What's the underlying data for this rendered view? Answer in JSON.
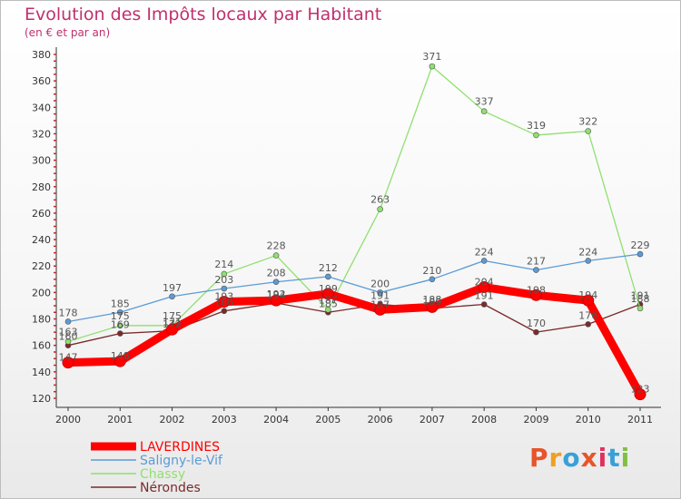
{
  "header": {
    "title": "Evolution des Impôts locaux par Habitant",
    "subtitle": "(en € et par an)"
  },
  "logo": {
    "text": "Proxiti",
    "colors": [
      "#e8542a",
      "#f0a020",
      "#3aa0d8",
      "#e8542a",
      "#e03060",
      "#3aa0d8",
      "#80c040"
    ]
  },
  "chart_data": {
    "type": "line",
    "title": "Evolution des Impôts locaux par Habitant",
    "subtitle": "(en € et par an)",
    "xlabel": "",
    "ylabel": "",
    "ylim": [
      120,
      380
    ],
    "yticks": [
      120,
      140,
      160,
      180,
      200,
      220,
      240,
      260,
      280,
      300,
      320,
      340,
      360,
      380
    ],
    "categories": [
      "2000",
      "2001",
      "2002",
      "2003",
      "2004",
      "2005",
      "2006",
      "2007",
      "2008",
      "2009",
      "2010",
      "2011"
    ],
    "legend_position": "bottom-left",
    "grid": false,
    "series": [
      {
        "name": "LAVERDINES",
        "color": "#ff0000",
        "values": [
          147,
          148,
          172,
          193,
          194,
          199,
          187,
          189,
          204,
          198,
          194,
          123
        ],
        "labels": [
          "147",
          "148",
          "172",
          "193",
          "194",
          "199",
          "187",
          "189",
          "204",
          "198",
          "194",
          "123"
        ]
      },
      {
        "name": "Saligny-le-Vif",
        "color": "#5b9bd5",
        "values": [
          178,
          185,
          197,
          203,
          208,
          212,
          200,
          210,
          224,
          217,
          224,
          229
        ],
        "labels": [
          "178",
          "185",
          "197",
          "203",
          "208",
          "212",
          "200",
          "210",
          "224",
          "217",
          "224",
          "229"
        ]
      },
      {
        "name": "Chassy",
        "color": "#90e070",
        "values": [
          163,
          175,
          175,
          214,
          228,
          187,
          263,
          371,
          337,
          319,
          322,
          188
        ],
        "labels": [
          "163",
          "175",
          "175",
          "214",
          "228",
          "187",
          "263",
          "371",
          "337",
          "319",
          "322",
          "188"
        ]
      },
      {
        "name": "Nérondes",
        "color": "#7b2a2a",
        "values": [
          160,
          169,
          171,
          186,
          192,
          185,
          191,
          188,
          191,
          170,
          176,
          191
        ],
        "labels": [
          "160",
          "169",
          "171",
          "186",
          "192",
          "185",
          "191",
          "188",
          "191",
          "170",
          "176",
          "191"
        ]
      }
    ]
  }
}
